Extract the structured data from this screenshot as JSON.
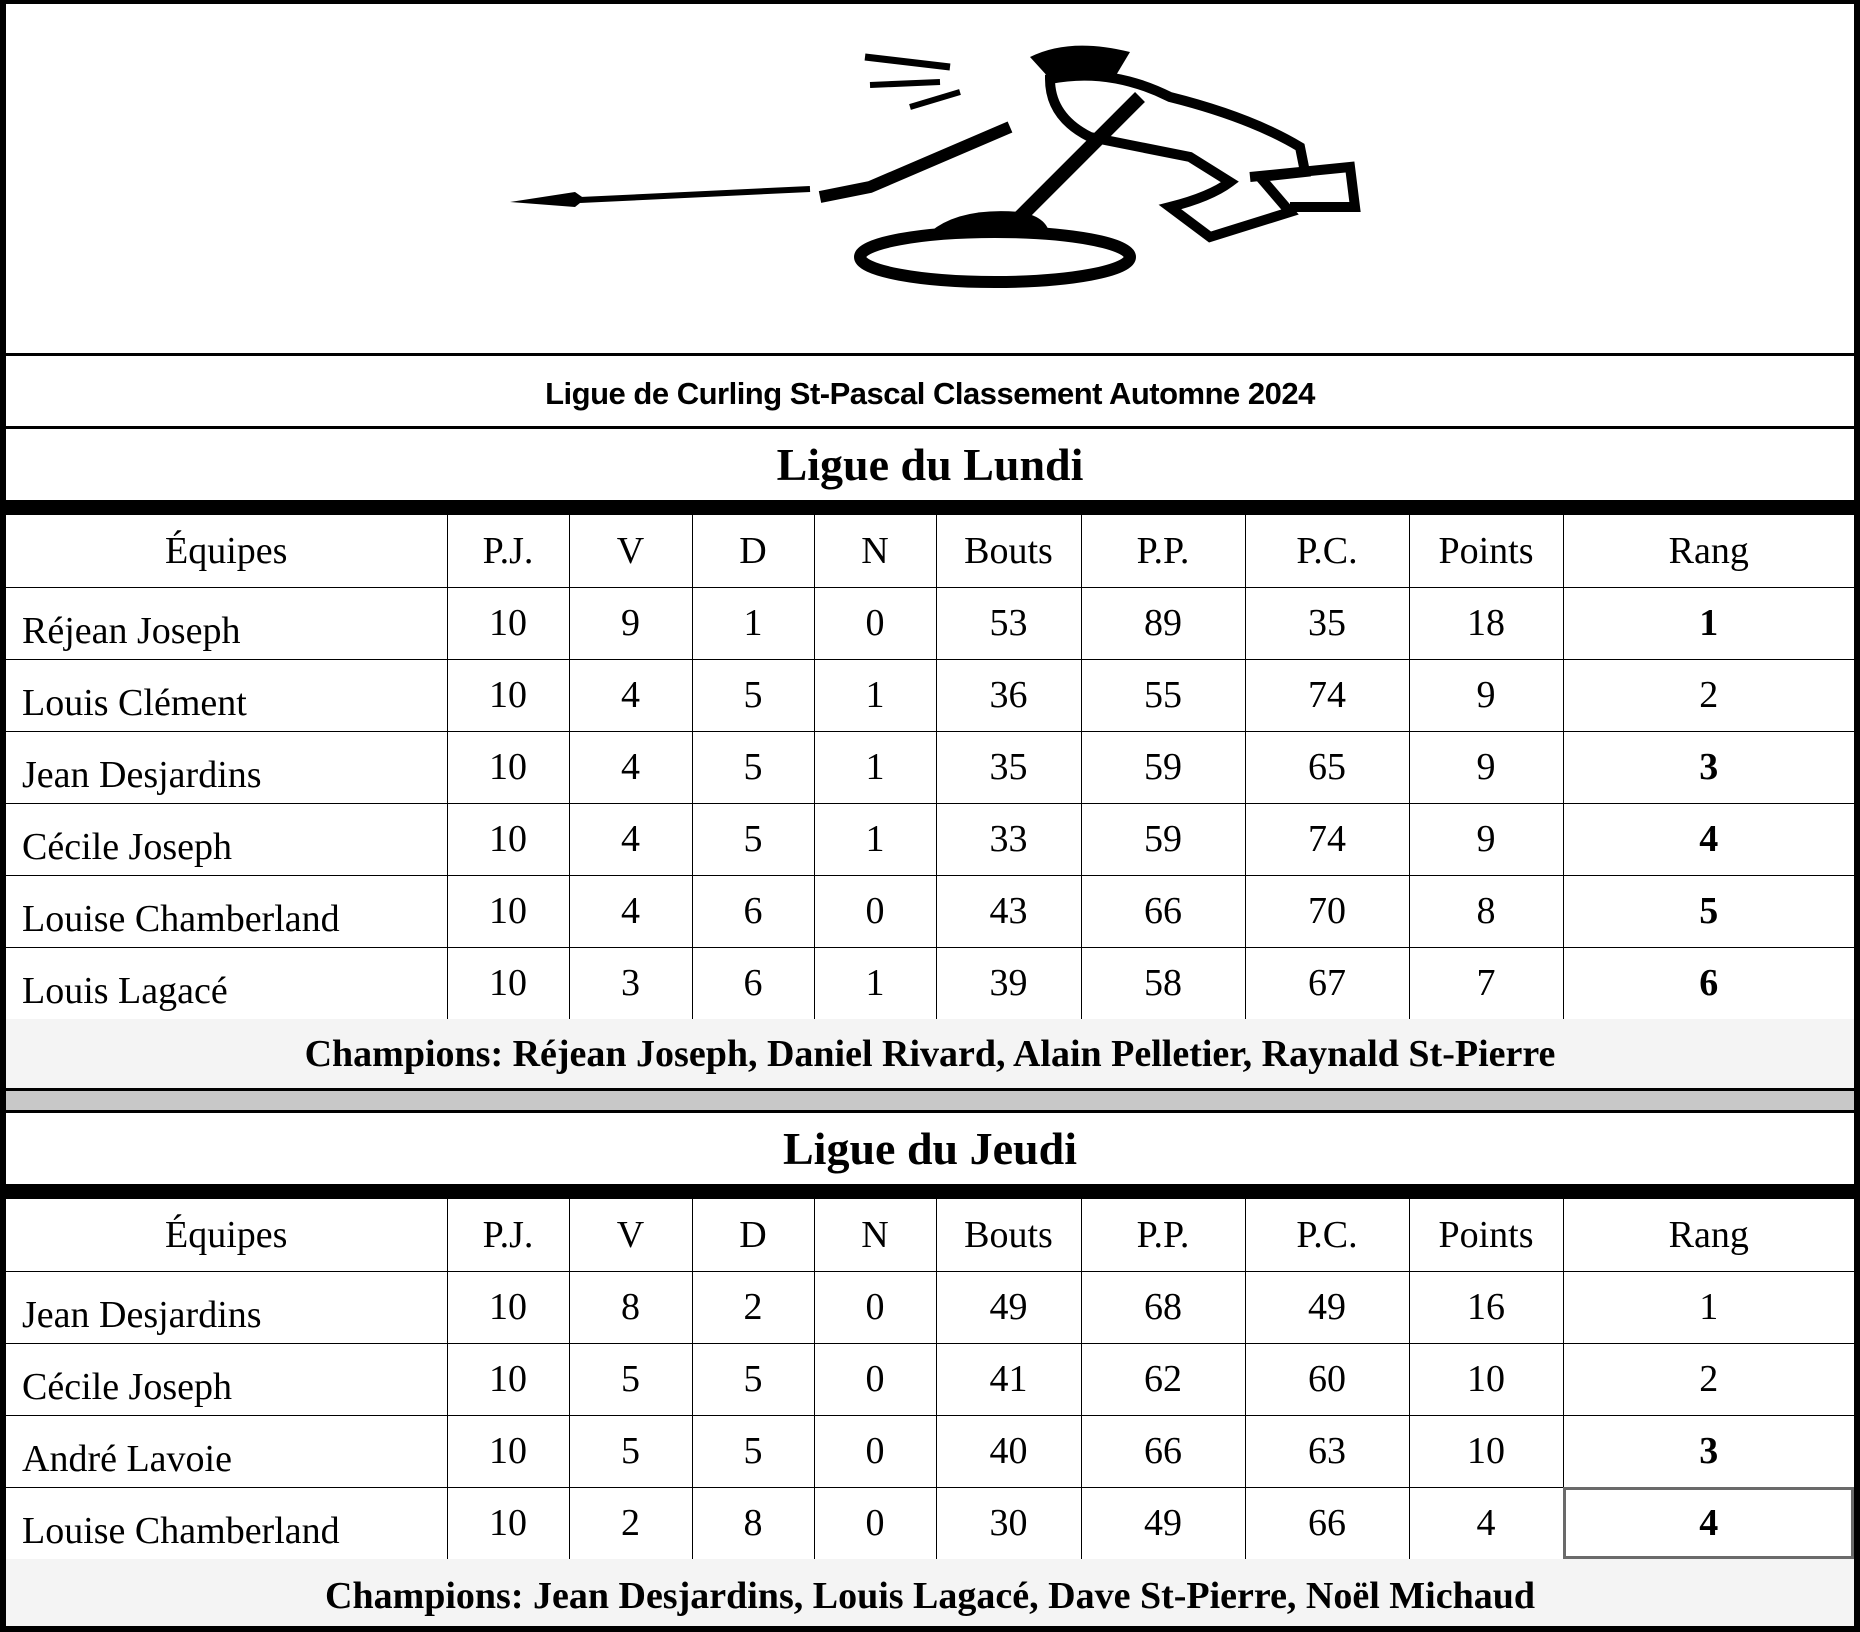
{
  "logo": {
    "icon": "curler-sweeping-icon"
  },
  "title": "Ligue de Curling St-Pascal  Classement  Automne 2024",
  "columns": [
    "Équipes",
    "P.J.",
    "V",
    "D",
    "N",
    "Bouts",
    "P.P.",
    "P.C.",
    "Points",
    "Rang"
  ],
  "leagues": [
    {
      "name": "Ligue du Lundi",
      "rows": [
        {
          "team": "Réjean Joseph",
          "pj": "10",
          "v": "9",
          "d": "1",
          "n": "0",
          "bouts": "53",
          "pp": "89",
          "pc": "35",
          "points": "18",
          "rang": "1",
          "rang_bold": true
        },
        {
          "team": "Louis Clément",
          "pj": "10",
          "v": "4",
          "d": "5",
          "n": "1",
          "bouts": "36",
          "pp": "55",
          "pc": "74",
          "points": "9",
          "rang": "2",
          "rang_bold": false
        },
        {
          "team": "Jean Desjardins",
          "pj": "10",
          "v": "4",
          "d": "5",
          "n": "1",
          "bouts": "35",
          "pp": "59",
          "pc": "65",
          "points": "9",
          "rang": "3",
          "rang_bold": true
        },
        {
          "team": "Cécile Joseph",
          "pj": "10",
          "v": "4",
          "d": "5",
          "n": "1",
          "bouts": "33",
          "pp": "59",
          "pc": "74",
          "points": "9",
          "rang": "4",
          "rang_bold": true
        },
        {
          "team": "Louise Chamberland",
          "pj": "10",
          "v": "4",
          "d": "6",
          "n": "0",
          "bouts": "43",
          "pp": "66",
          "pc": "70",
          "points": "8",
          "rang": "5",
          "rang_bold": true
        },
        {
          "team": "Louis Lagacé",
          "pj": "10",
          "v": "3",
          "d": "6",
          "n": "1",
          "bouts": "39",
          "pp": "58",
          "pc": "67",
          "points": "7",
          "rang": "6",
          "rang_bold": true
        }
      ],
      "champions": "Champions:   Réjean Joseph, Daniel Rivard, Alain Pelletier, Raynald St-Pierre"
    },
    {
      "name": "Ligue du Jeudi",
      "rows": [
        {
          "team": "Jean Desjardins",
          "pj": "10",
          "v": "8",
          "d": "2",
          "n": "0",
          "bouts": "49",
          "pp": "68",
          "pc": "49",
          "points": "16",
          "rang": "1",
          "rang_bold": false
        },
        {
          "team": "Cécile Joseph",
          "pj": "10",
          "v": "5",
          "d": "5",
          "n": "0",
          "bouts": "41",
          "pp": "62",
          "pc": "60",
          "points": "10",
          "rang": "2",
          "rang_bold": false
        },
        {
          "team": "André Lavoie",
          "pj": "10",
          "v": "5",
          "d": "5",
          "n": "0",
          "bouts": "40",
          "pp": "66",
          "pc": "63",
          "points": "10",
          "rang": "3",
          "rang_bold": true
        },
        {
          "team": "Louise Chamberland",
          "pj": "10",
          "v": "2",
          "d": "8",
          "n": "0",
          "bouts": "30",
          "pp": "49",
          "pc": "66",
          "points": "4",
          "rang": "4",
          "rang_bold": true,
          "selected": true
        }
      ],
      "champions": "Champions:  Jean Desjardins, Louis Lagacé, Dave St-Pierre, Noël Michaud"
    }
  ]
}
